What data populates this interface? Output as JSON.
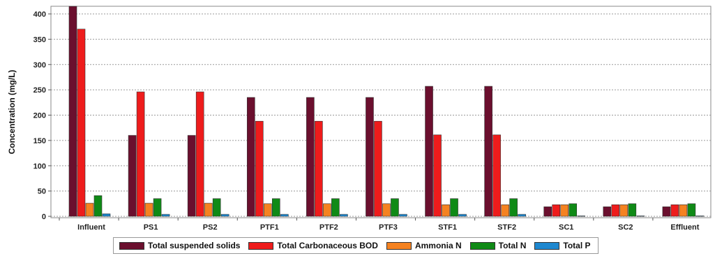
{
  "chart_data": {
    "type": "bar",
    "title": "",
    "xlabel": "",
    "ylabel": "Concentration (mg/L)",
    "ylim": [
      0,
      420
    ],
    "yticks": [
      0,
      50,
      100,
      150,
      200,
      250,
      300,
      350,
      400
    ],
    "grid": true,
    "legend_position": "bottom",
    "categories": [
      "Influent",
      "PS1",
      "PS2",
      "PTF1",
      "PTF2",
      "PTF3",
      "STF1",
      "STF2",
      "SC1",
      "SC2",
      "Effluent"
    ],
    "series": [
      {
        "name": "Total suspended solids",
        "color": "#6b0f2e",
        "values": [
          415,
          160,
          160,
          235,
          235,
          235,
          257,
          257,
          19,
          19,
          19
        ]
      },
      {
        "name": "Total Carbonaceous BOD",
        "color": "#ee1c1c",
        "values": [
          370,
          246,
          246,
          188,
          188,
          188,
          161,
          161,
          23,
          23,
          23
        ]
      },
      {
        "name": "Ammonia N",
        "color": "#f58220",
        "values": [
          26,
          26,
          26,
          25,
          25,
          25,
          23,
          23,
          23,
          23,
          23
        ]
      },
      {
        "name": "Total N",
        "color": "#0f8a16",
        "values": [
          41,
          35,
          35,
          35,
          35,
          35,
          35,
          35,
          25,
          25,
          25
        ]
      },
      {
        "name": "Total P",
        "color": "#1e88d0",
        "values": [
          5,
          4,
          4,
          4,
          4,
          4,
          4,
          4,
          1,
          1,
          1
        ]
      }
    ]
  }
}
